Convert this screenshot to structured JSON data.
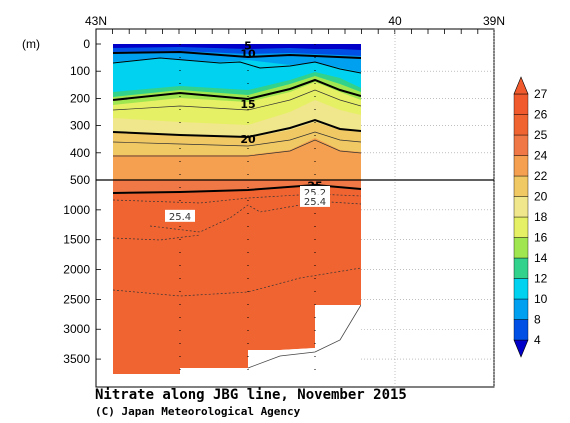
{
  "chart_data": {
    "type": "heatmap",
    "title": "Nitrate along JBG line, November 2015",
    "credit": "(C) Japan Meteorological Agency",
    "yunit": "(m)",
    "x_ticks": [
      "43N",
      "40",
      "39N"
    ],
    "y_ticks_upper": [
      0,
      100,
      200,
      300,
      400,
      500
    ],
    "y_ticks_lower": [
      1000,
      1500,
      2000,
      2500,
      3000,
      3500
    ],
    "y_break": 500,
    "y_upper_range": [
      0,
      500
    ],
    "y_lower_range": [
      500,
      3800
    ],
    "station_offsets": [
      0,
      1.0,
      2.0,
      3.0,
      3.7
    ],
    "colorbar": {
      "levels": [
        4,
        8,
        10,
        12,
        14,
        16,
        18,
        20,
        22,
        24,
        25,
        26,
        27
      ],
      "colors": [
        "#0000c8",
        "#0050e6",
        "#00a0f0",
        "#00d2f0",
        "#32d28c",
        "#a0e650",
        "#e6f064",
        "#f0e68c",
        "#f0c864",
        "#f5a050",
        "#f07846",
        "#f06432",
        "#f05a2d"
      ],
      "tick_labels": [
        4,
        8,
        10,
        12,
        14,
        16,
        18,
        20,
        22,
        24,
        25,
        26,
        27
      ]
    },
    "contour_labels_upper": [
      {
        "value": "5",
        "depth": 5,
        "station": 2.0
      },
      {
        "value": "10",
        "depth": 35,
        "station": 2.0
      },
      {
        "value": "15",
        "depth": 220,
        "station": 2.0
      },
      {
        "value": "20",
        "depth": 350,
        "station": 2.0
      },
      {
        "value": "25",
        "depth": 520,
        "station": 3.0
      }
    ],
    "contour_labels_lower": [
      {
        "value": "25.4",
        "depth": 1100,
        "station": 1.0
      },
      {
        "value": "25.2",
        "depth": 700,
        "station": 3.0
      },
      {
        "value": "25.4",
        "depth": 850,
        "station": 3.0
      }
    ]
  }
}
